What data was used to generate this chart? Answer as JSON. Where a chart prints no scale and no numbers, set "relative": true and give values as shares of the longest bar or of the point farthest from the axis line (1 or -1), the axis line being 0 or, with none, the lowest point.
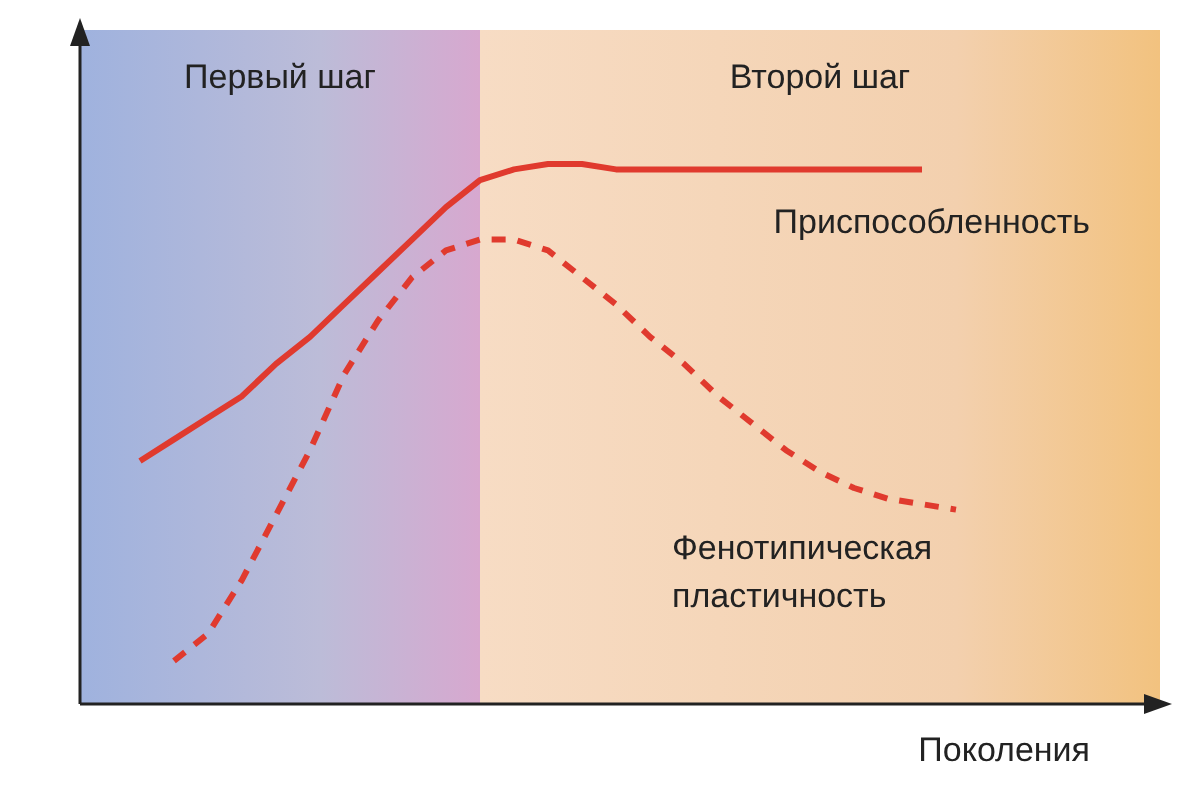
{
  "chart_data": {
    "type": "line",
    "relative": true,
    "xlabel": "Поколения",
    "tick_labels": false,
    "legend": false,
    "marker": "none",
    "annotations": [
      "Первый шаг",
      "Второй шаг"
    ],
    "categories": [
      null,
      null,
      null,
      null,
      null,
      null,
      null,
      null,
      null,
      null,
      null,
      null,
      null,
      null,
      null,
      null,
      null,
      null,
      null,
      null,
      null,
      null,
      null,
      null,
      null
    ],
    "series": [
      {
        "name": "Приспособленность",
        "color": "#e03a2e",
        "line_style": "solid",
        "values": [
          0.45,
          0.49,
          0.53,
          0.57,
          0.63,
          0.68,
          0.74,
          0.8,
          0.86,
          0.92,
          0.97,
          0.99,
          1,
          1,
          0.99,
          0.99,
          0.99,
          0.99,
          0.99,
          0.99,
          0.99,
          0.99,
          0.99,
          0.99,
          null
        ]
      },
      {
        "name": "Фенотипическая пластичность",
        "color": "#e03a2e",
        "line_style": "dashed",
        "values": [
          null,
          0.08,
          0.13,
          0.23,
          0.35,
          0.47,
          0.61,
          0.71,
          0.79,
          0.84,
          0.86,
          0.86,
          0.84,
          0.79,
          0.74,
          0.68,
          0.63,
          0.57,
          0.52,
          0.47,
          0.43,
          0.4,
          0.38,
          0.37,
          0.36
        ]
      }
    ]
  }
}
